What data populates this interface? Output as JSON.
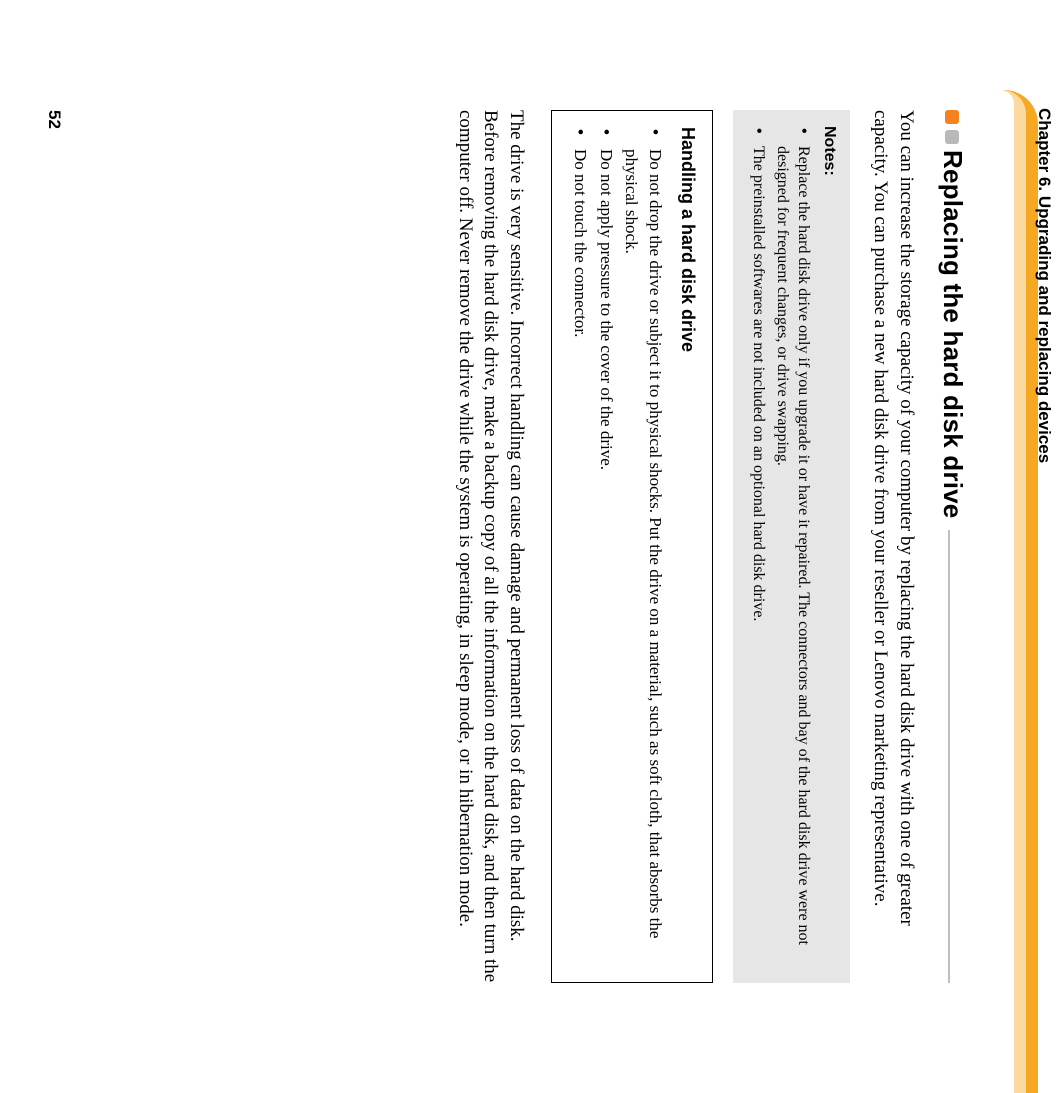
{
  "header": {
    "chapter": "Chapter 6. Upgrading and replacing devices"
  },
  "section": {
    "title": "Replacing the hard disk drive"
  },
  "intro": "You can increase the storage capacity of your computer by replacing the hard disk drive with one of greater capacity. You can purchase a new hard disk drive from your reseller or Lenovo marketing representative.",
  "notes": {
    "title": "Notes:",
    "items": [
      "Replace the hard disk drive only if you upgrade it or have it repaired. The connectors and bay of the hard disk drive were not designed for frequent changes, or drive swapping.",
      "The preinstalled softwares are not included on an optional hard disk drive."
    ]
  },
  "handling": {
    "title": "Handling a hard disk drive",
    "items": [
      "Do not drop the drive or subject it to physical shocks. Put the drive on a material, such as soft cloth, that absorbs the physical shock.",
      "Do not apply pressure to the cover of the drive.",
      "Do not touch the connector."
    ]
  },
  "body": "The drive is very sensitive. Incorrect handling can cause damage and permanent loss of data on the hard disk. Before removing the hard disk drive, make a backup copy of all the information on the hard disk, and then turn the computer off. Never remove the drive while the system is operating, in sleep mode, or in hibernation mode.",
  "pageNumber": "52",
  "colors": {
    "accent_orange": "#f5821f",
    "band_orange": "#f7a823",
    "band_light": "#fcd9a0",
    "grey_square": "#b9b9b9",
    "notes_bg": "#e6e6e6",
    "rule": "#bfbfbf"
  }
}
